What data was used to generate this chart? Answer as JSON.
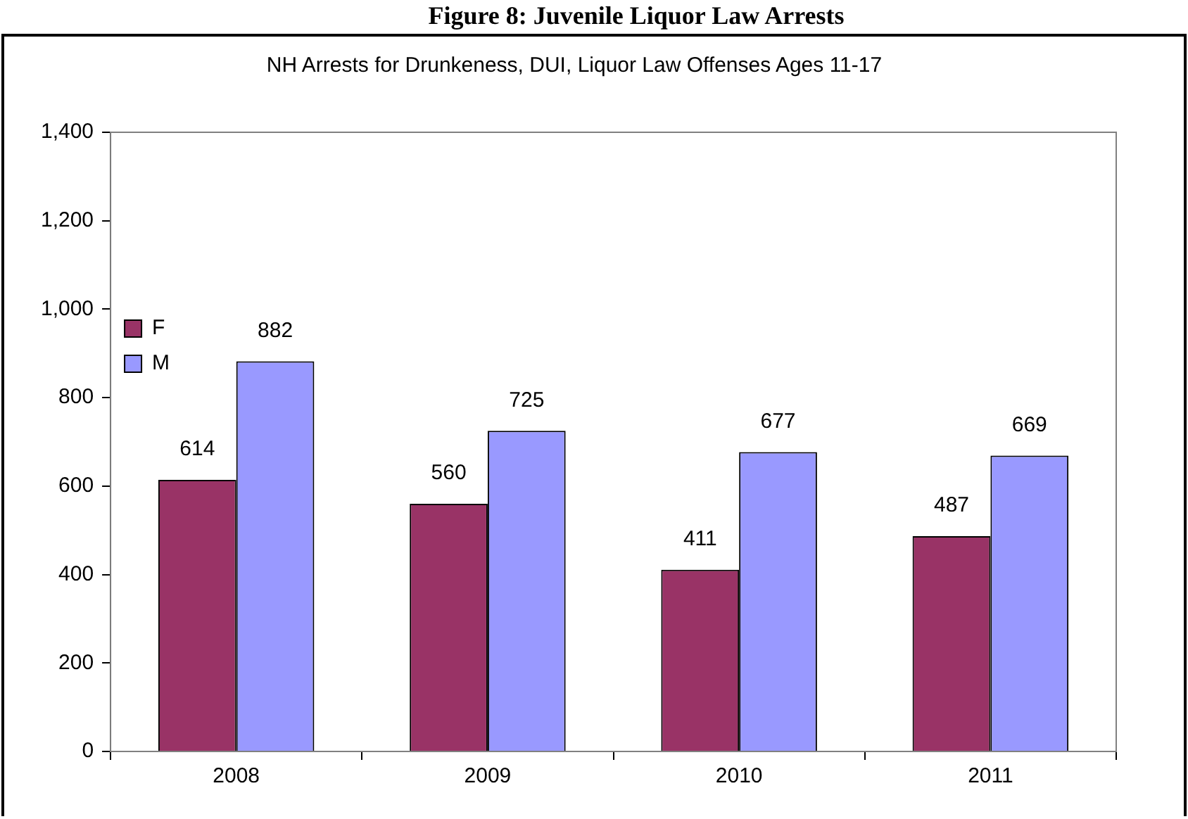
{
  "chart_data": {
    "type": "bar",
    "title": "Figure 8: Juvenile Liquor Law Arrests",
    "subtitle": "NH Arrests for Drunkeness, DUI, Liquor Law Offenses Ages 11-17",
    "categories": [
      "2008",
      "2009",
      "2010",
      "2011"
    ],
    "series": [
      {
        "name": "F",
        "color": "#993366",
        "values": [
          614,
          560,
          411,
          487
        ]
      },
      {
        "name": "M",
        "color": "#9999ff",
        "values": [
          882,
          725,
          677,
          669
        ]
      }
    ],
    "ylim": [
      0,
      1400
    ],
    "yticks": [
      {
        "value": 0,
        "label": "0"
      },
      {
        "value": 200,
        "label": "200"
      },
      {
        "value": 400,
        "label": "400"
      },
      {
        "value": 600,
        "label": "600"
      },
      {
        "value": 800,
        "label": "800"
      },
      {
        "value": 1000,
        "label": "1,000"
      },
      {
        "value": 1200,
        "label": "1,200"
      },
      {
        "value": 1400,
        "label": "1,400"
      }
    ],
    "grid": false,
    "legend": "top",
    "data_labels": true
  }
}
